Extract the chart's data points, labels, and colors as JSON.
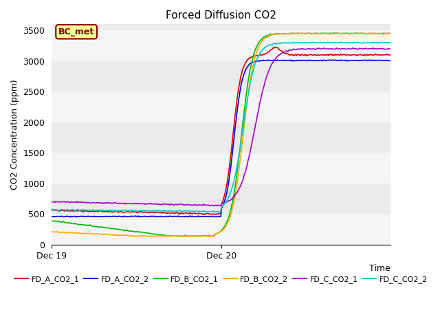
{
  "title": "Forced Diffusion CO2",
  "ylabel": "CO2 Concentration (ppm)",
  "xlabel": "Time",
  "annotation": "BC_met",
  "ylim": [
    0,
    3600
  ],
  "yticks": [
    0,
    500,
    1000,
    1500,
    2000,
    2500,
    3000,
    3500
  ],
  "xtick_labels": [
    "Dec 19",
    "Dec 20"
  ],
  "xtick_positions": [
    0.0,
    0.5
  ],
  "xlim": [
    0,
    1.0
  ],
  "plot_bg_color": "#ebebeb",
  "band_color": "#f5f5f5",
  "series": [
    {
      "label": "FD_A_CO2_1",
      "color": "#dd0000"
    },
    {
      "label": "FD_A_CO2_2",
      "color": "#0000dd"
    },
    {
      "label": "FD_B_CO2_1",
      "color": "#00bb00"
    },
    {
      "label": "FD_B_CO2_2",
      "color": "#ffaa00"
    },
    {
      "label": "FD_C_CO2_1",
      "color": "#aa00cc"
    },
    {
      "label": "FD_C_CO2_2",
      "color": "#00cccc"
    }
  ],
  "n_points": 400,
  "title_fontsize": 11,
  "tick_fontsize": 9,
  "ylabel_fontsize": 9,
  "xlabel_fontsize": 9,
  "legend_fontsize": 8
}
